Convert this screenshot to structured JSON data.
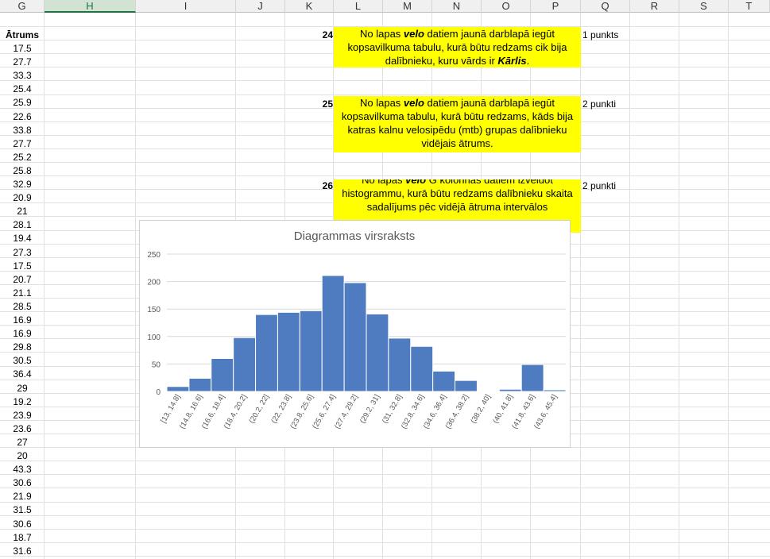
{
  "columns": [
    "G",
    "H",
    "I",
    "J",
    "K",
    "L",
    "M",
    "N",
    "O",
    "P",
    "Q",
    "R",
    "S",
    "T"
  ],
  "selected_column": "H",
  "g_column": {
    "header": "Ātrums",
    "values": [
      "17.5",
      "27.7",
      "33.3",
      "25.4",
      "25.9",
      "22.6",
      "33.8",
      "27.7",
      "25.2",
      "25.8",
      "32.9",
      "20.9",
      "21",
      "28.1",
      "19.4",
      "27.3",
      "17.5",
      "20.7",
      "21.1",
      "28.5",
      "16.9",
      "16.9",
      "29.8",
      "30.5",
      "36.4",
      "29",
      "19.2",
      "23.9",
      "23.6",
      "27",
      "20",
      "43.3",
      "30.6",
      "21.9",
      "31.5",
      "30.6",
      "18.7",
      "31.6"
    ]
  },
  "tasks": [
    {
      "num": "24",
      "points": "1 punkts",
      "parts": [
        {
          "t": "No lapas "
        },
        {
          "t": "velo",
          "s": "bi"
        },
        {
          "t": " datiem jaunā darblapā iegūt kopsavilkuma tabulu, kurā būtu redzams cik bija dalībnieku, kuru vārds ir "
        },
        {
          "t": "Kārlis",
          "s": "bi"
        },
        {
          "t": "."
        }
      ]
    },
    {
      "num": "25",
      "points": "2 punkti",
      "parts": [
        {
          "t": "No lapas "
        },
        {
          "t": "velo",
          "s": "bi"
        },
        {
          "t": " datiem jaunā darblapā iegūt kopsavilkuma tabulu, kurā būtu redzams, kāds bija katras kalnu velosipēdu (mtb) grupas dalībnieku vidējais ātrums."
        }
      ]
    },
    {
      "num": "26",
      "points": "2 punkti",
      "parts": [
        {
          "t": "No lapas "
        },
        {
          "t": "velo",
          "s": "bi"
        },
        {
          "t": " G kolonnas datiem izveidot histogrammu, kurā būtu redzams dalībnieku skaita sadalījums pēc vidējā ātruma intervālos"
        }
      ]
    }
  ],
  "chart_data": {
    "type": "bar",
    "title": "Diagrammas virsraksts",
    "categories": [
      "[13, 14.8]",
      "(14.8, 16.6]",
      "(16.6, 18.4]",
      "(18.4, 20.2]",
      "(20.2, 22]",
      "(22, 23.8]",
      "(23.8, 25.6]",
      "(25.6, 27.4]",
      "(27.4, 29.2]",
      "(29.2, 31]",
      "(31, 32.8]",
      "(32.8, 34.6]",
      "(34.6, 36.4]",
      "(36.4, 38.2]",
      "(38.2, 40]",
      "(40, 41.8]",
      "(41.8, 43.6]",
      "(43.6, 45.4]"
    ],
    "values": [
      9,
      24,
      60,
      98,
      140,
      144,
      147,
      211,
      198,
      141,
      97,
      82,
      37,
      20,
      1,
      4,
      49,
      3
    ],
    "yticks": [
      "0",
      "50",
      "100",
      "150",
      "200",
      "250"
    ],
    "ylim": [
      0,
      250
    ],
    "grid": true,
    "bar_color": "#4f7cc1",
    "xlabel": "",
    "ylabel": ""
  },
  "colors": {
    "task_highlight": "#ffff00",
    "selected_header": "#217346"
  }
}
